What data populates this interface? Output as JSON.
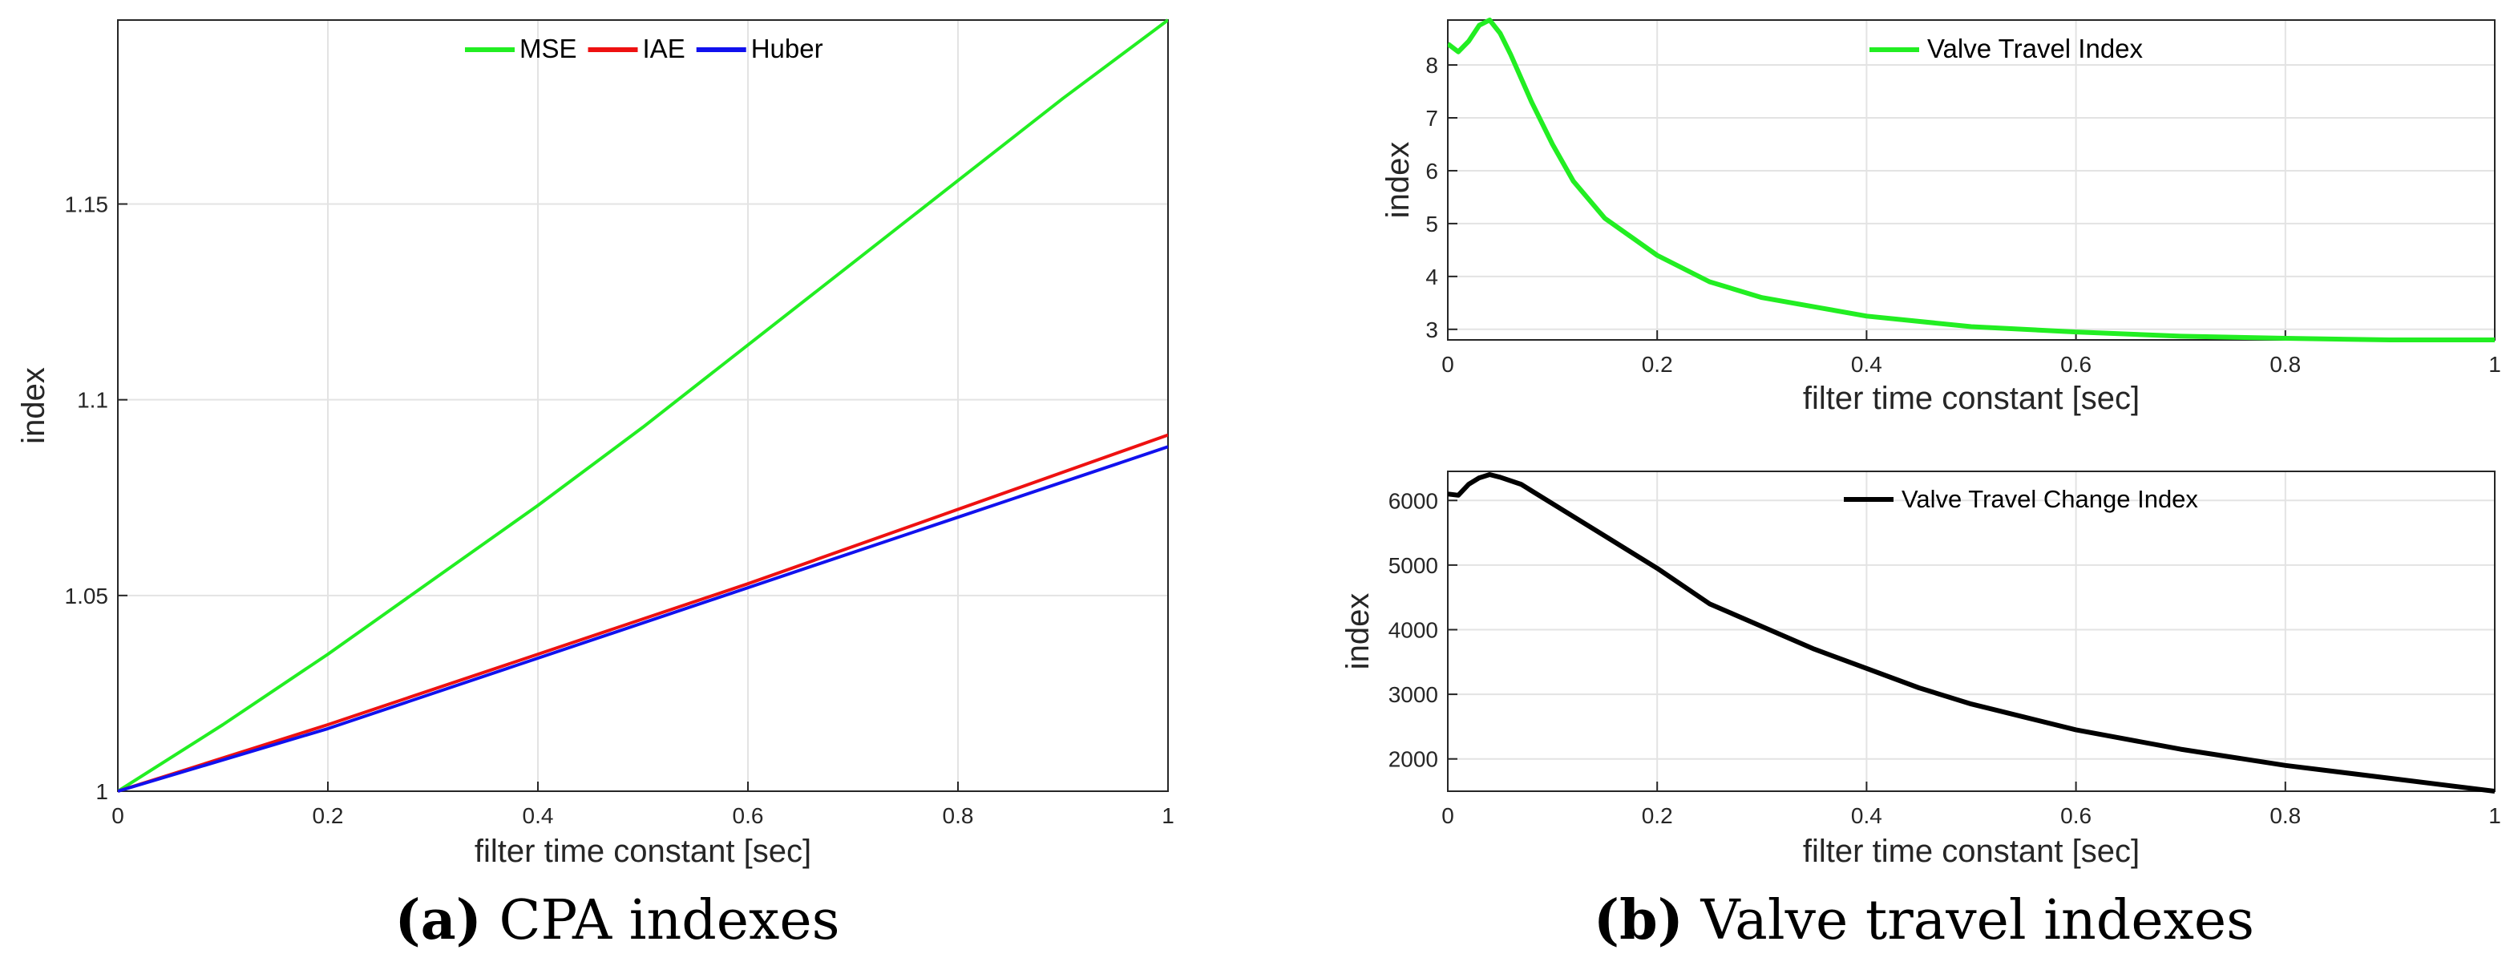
{
  "chart_data": [
    {
      "id": "cpa",
      "type": "line",
      "title": "",
      "xlabel": "filter time constant [sec]",
      "ylabel": "index",
      "xlim": [
        0,
        1
      ],
      "ylim": [
        1,
        1.197
      ],
      "grid": true,
      "legend": {
        "placement": "top-center",
        "orientation": "horizontal"
      },
      "xticks": [
        0,
        0.2,
        0.4,
        0.6,
        0.8,
        1
      ],
      "xtick_labels": [
        "0",
        "0.2",
        "0.4",
        "0.6",
        "0.8",
        "1"
      ],
      "yticks": [
        1,
        1.05,
        1.1,
        1.15
      ],
      "ytick_labels": [
        "1",
        "1.05",
        "1.1",
        "1.15"
      ],
      "series": [
        {
          "name": "MSE",
          "color": "#22ee22",
          "x": [
            0,
            0.1,
            0.2,
            0.3,
            0.4,
            0.5,
            0.6,
            0.7,
            0.8,
            0.9,
            1.0
          ],
          "y": [
            1.0,
            1.017,
            1.035,
            1.054,
            1.073,
            1.093,
            1.114,
            1.135,
            1.156,
            1.177,
            1.197
          ]
        },
        {
          "name": "IAE",
          "color": "#ee1111",
          "x": [
            0,
            0.2,
            0.4,
            0.6,
            0.8,
            1.0
          ],
          "y": [
            1.0,
            1.017,
            1.035,
            1.053,
            1.072,
            1.091
          ]
        },
        {
          "name": "Huber",
          "color": "#1111ee",
          "x": [
            0,
            0.2,
            0.4,
            0.6,
            0.8,
            1.0
          ],
          "y": [
            1.0,
            1.016,
            1.034,
            1.052,
            1.07,
            1.088
          ]
        }
      ]
    },
    {
      "id": "vti",
      "type": "line",
      "title": "",
      "xlabel": "filter time constant [sec]",
      "ylabel": "index",
      "xlim": [
        0,
        1
      ],
      "ylim": [
        2.8,
        8.85
      ],
      "grid": true,
      "legend": {
        "placement": "top-center",
        "orientation": "horizontal"
      },
      "xticks": [
        0,
        0.2,
        0.4,
        0.6,
        0.8,
        1
      ],
      "xtick_labels": [
        "0",
        "0.2",
        "0.4",
        "0.6",
        "0.8",
        "1"
      ],
      "yticks": [
        3,
        4,
        5,
        6,
        7,
        8
      ],
      "ytick_labels": [
        "3",
        "4",
        "5",
        "6",
        "7",
        "8"
      ],
      "series": [
        {
          "name": "Valve Travel Index",
          "color": "#22ee22",
          "x": [
            0,
            0.01,
            0.02,
            0.03,
            0.04,
            0.05,
            0.06,
            0.08,
            0.1,
            0.12,
            0.15,
            0.2,
            0.25,
            0.3,
            0.4,
            0.5,
            0.6,
            0.7,
            0.8,
            0.9,
            1.0
          ],
          "y": [
            8.4,
            8.25,
            8.45,
            8.75,
            8.85,
            8.6,
            8.2,
            7.3,
            6.5,
            5.8,
            5.1,
            4.4,
            3.9,
            3.6,
            3.25,
            3.05,
            2.95,
            2.87,
            2.83,
            2.8,
            2.8
          ]
        }
      ]
    },
    {
      "id": "vtci",
      "type": "line",
      "title": "",
      "xlabel": "filter time constant [sec]",
      "ylabel": "index",
      "xlim": [
        0,
        1
      ],
      "ylim": [
        1500,
        6450
      ],
      "grid": true,
      "legend": {
        "placement": "top-center",
        "orientation": "horizontal"
      },
      "xticks": [
        0,
        0.2,
        0.4,
        0.6,
        0.8,
        1
      ],
      "xtick_labels": [
        "0",
        "0.2",
        "0.4",
        "0.6",
        "0.8",
        "1"
      ],
      "yticks": [
        2000,
        3000,
        4000,
        5000,
        6000
      ],
      "ytick_labels": [
        "2000",
        "3000",
        "4000",
        "5000",
        "6000"
      ],
      "series": [
        {
          "name": "Valve Travel Change Index",
          "color": "#000000",
          "x": [
            0,
            0.01,
            0.02,
            0.03,
            0.04,
            0.05,
            0.07,
            0.1,
            0.15,
            0.2,
            0.25,
            0.3,
            0.35,
            0.4,
            0.45,
            0.5,
            0.55,
            0.6,
            0.7,
            0.8,
            0.9,
            1.0
          ],
          "y": [
            6100,
            6080,
            6250,
            6350,
            6400,
            6360,
            6250,
            5950,
            5450,
            4950,
            4400,
            4050,
            3700,
            3400,
            3100,
            2850,
            2650,
            2450,
            2150,
            1900,
            1700,
            1500
          ]
        }
      ]
    }
  ],
  "captions": {
    "a": {
      "label": "(a)",
      "text": " CPA indexes"
    },
    "b": {
      "label": "(b)",
      "text": " Valve travel indexes"
    }
  }
}
